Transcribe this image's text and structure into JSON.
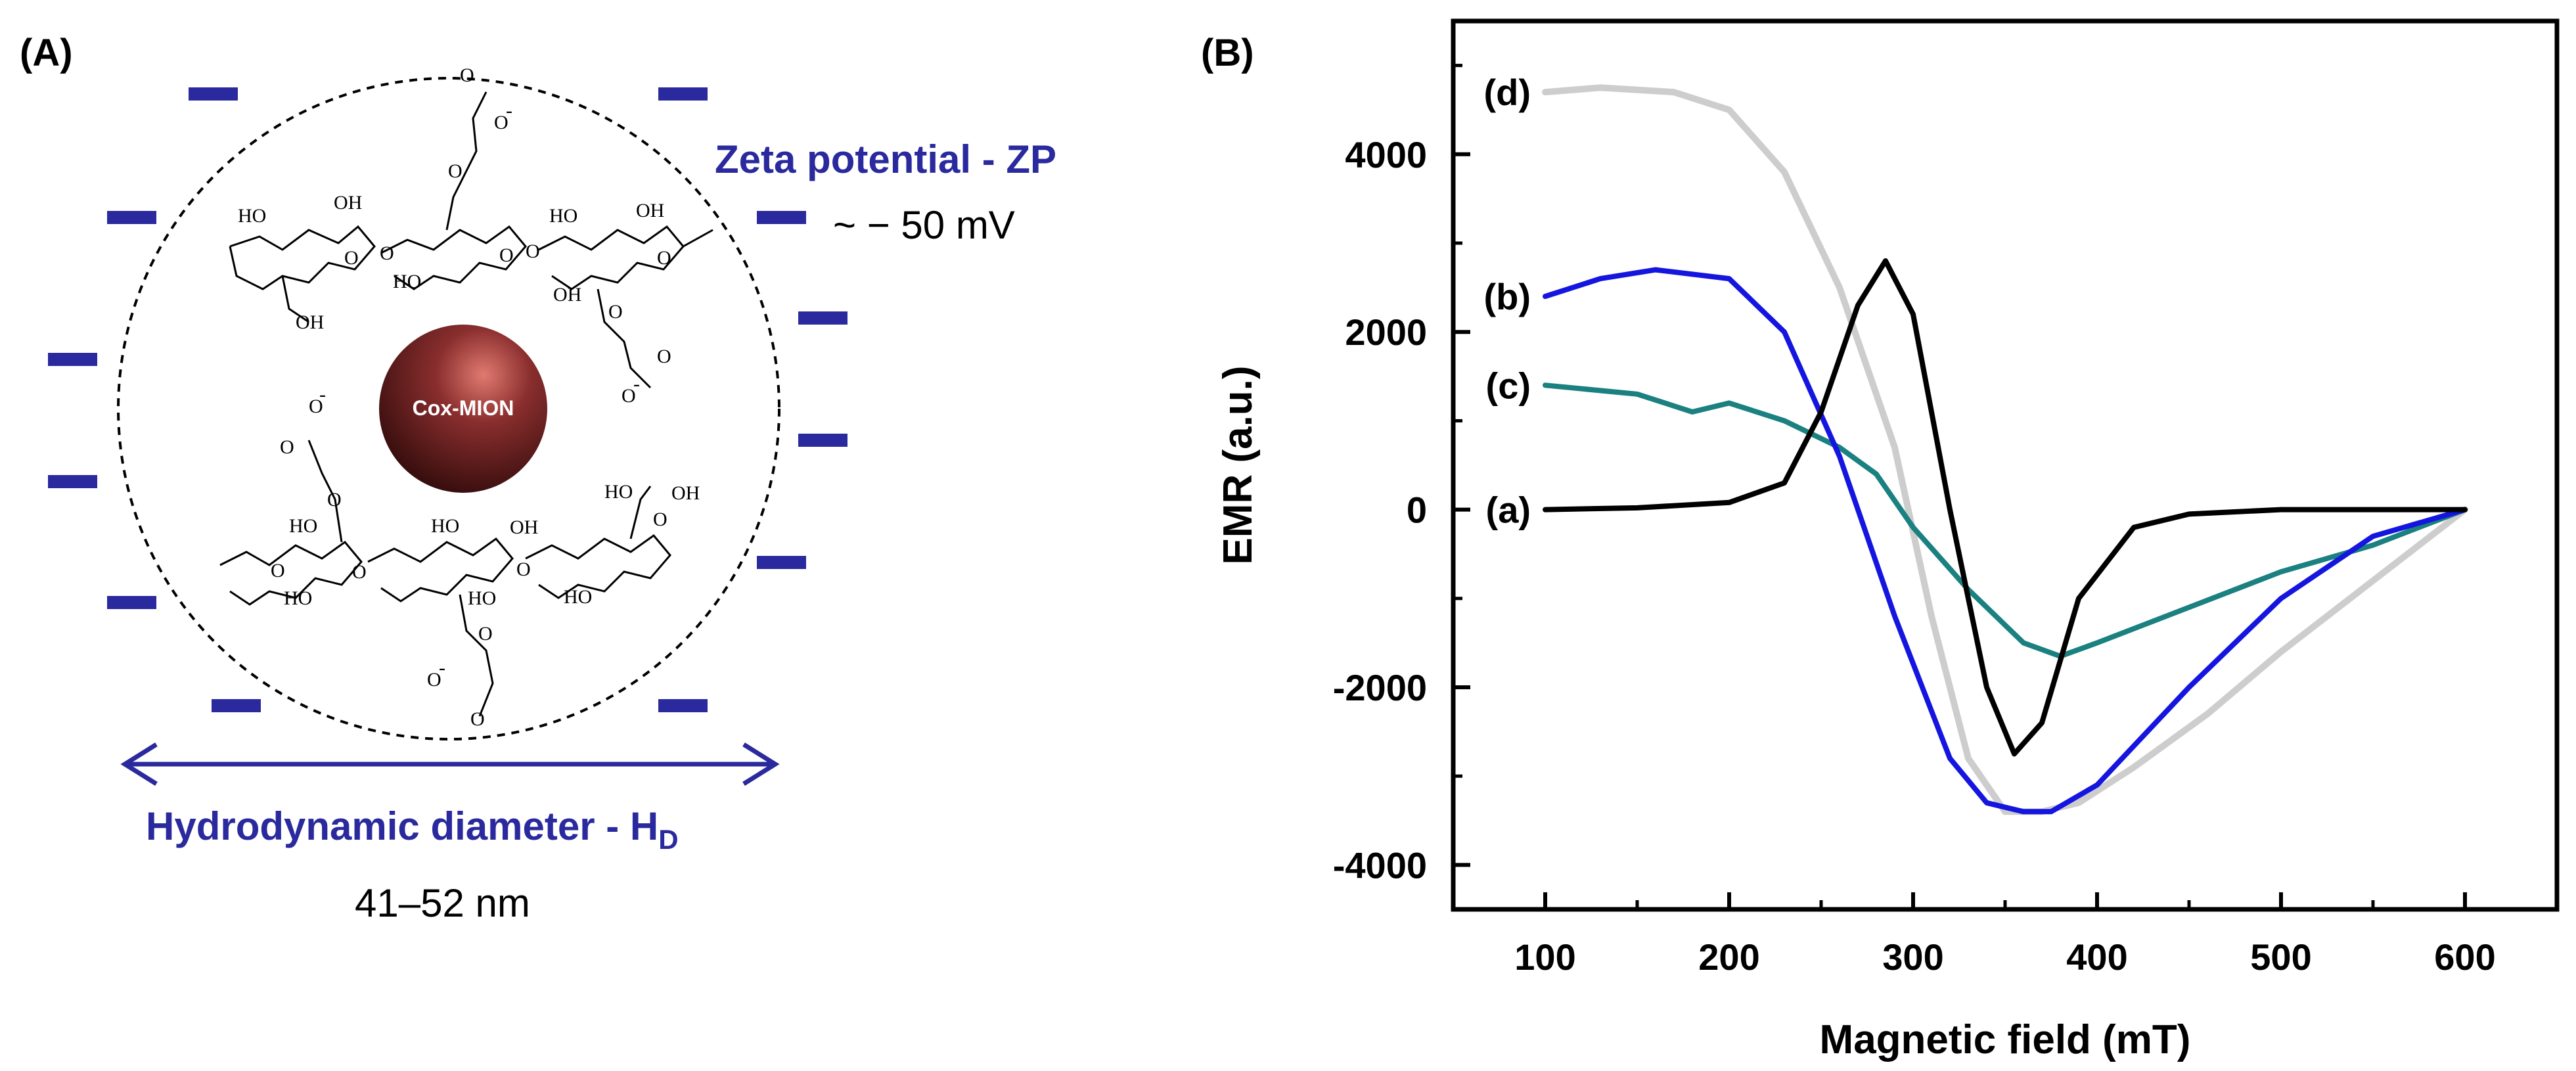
{
  "panel_a": {
    "label": "(A)",
    "zeta_title": "Zeta potential - ZP",
    "zeta_value": "~ − 50 mV",
    "core_label": "Cox-MION",
    "hd_title_main": "Hydrodynamic diameter - H",
    "hd_title_sub": "D",
    "hd_value": "41–52 nm",
    "colors": {
      "accent": "#2a2a9e",
      "core": "#6b2020"
    },
    "chem": {
      "ho": "HO",
      "oh": "OH",
      "o": "O",
      "coo": "O",
      "minus": "-"
    }
  },
  "panel_b": {
    "label": "(B)"
  },
  "chart_data": {
    "type": "line",
    "title": "",
    "xlabel": "Magnetic field (mT)",
    "ylabel": "EMR (a.u.)",
    "xlim": [
      50,
      650
    ],
    "ylim": [
      -4500,
      5500
    ],
    "xticks": [
      100,
      200,
      300,
      400,
      500,
      600
    ],
    "yticks": [
      -4000,
      -2000,
      0,
      2000,
      4000
    ],
    "xtick_labels": [
      "100",
      "200",
      "300",
      "400",
      "500",
      "600"
    ],
    "ytick_labels": [
      "-4000",
      "-2000",
      "0",
      "2000",
      "4000"
    ],
    "series": [
      {
        "name": "(a)",
        "color": "#000000",
        "x": [
          100,
          150,
          200,
          230,
          250,
          270,
          285,
          300,
          320,
          340,
          355,
          370,
          390,
          420,
          450,
          500,
          550,
          600
        ],
        "y": [
          0,
          20,
          80,
          300,
          1100,
          2300,
          2800,
          2200,
          0,
          -2000,
          -2750,
          -2400,
          -1000,
          -200,
          -50,
          0,
          0,
          0
        ]
      },
      {
        "name": "(b)",
        "color": "#1515e0",
        "x": [
          100,
          130,
          160,
          200,
          230,
          260,
          290,
          320,
          340,
          360,
          375,
          400,
          450,
          500,
          550,
          600
        ],
        "y": [
          2400,
          2600,
          2700,
          2600,
          2000,
          600,
          -1200,
          -2800,
          -3300,
          -3400,
          -3400,
          -3100,
          -2000,
          -1000,
          -300,
          0
        ]
      },
      {
        "name": "(c)",
        "color": "#1a8080",
        "x": [
          100,
          150,
          180,
          200,
          230,
          260,
          280,
          300,
          330,
          360,
          380,
          400,
          450,
          500,
          550,
          600
        ],
        "y": [
          1400,
          1300,
          1100,
          1200,
          1000,
          700,
          400,
          -200,
          -900,
          -1500,
          -1650,
          -1500,
          -1100,
          -700,
          -400,
          0
        ]
      },
      {
        "name": "(d)",
        "color": "#cdcdcd",
        "x": [
          100,
          130,
          170,
          200,
          230,
          260,
          290,
          310,
          330,
          350,
          370,
          390,
          420,
          460,
          500,
          550,
          600
        ],
        "y": [
          4700,
          4750,
          4700,
          4500,
          3800,
          2500,
          700,
          -1200,
          -2800,
          -3400,
          -3400,
          -3300,
          -2900,
          -2300,
          -1600,
          -800,
          0
        ]
      }
    ]
  }
}
